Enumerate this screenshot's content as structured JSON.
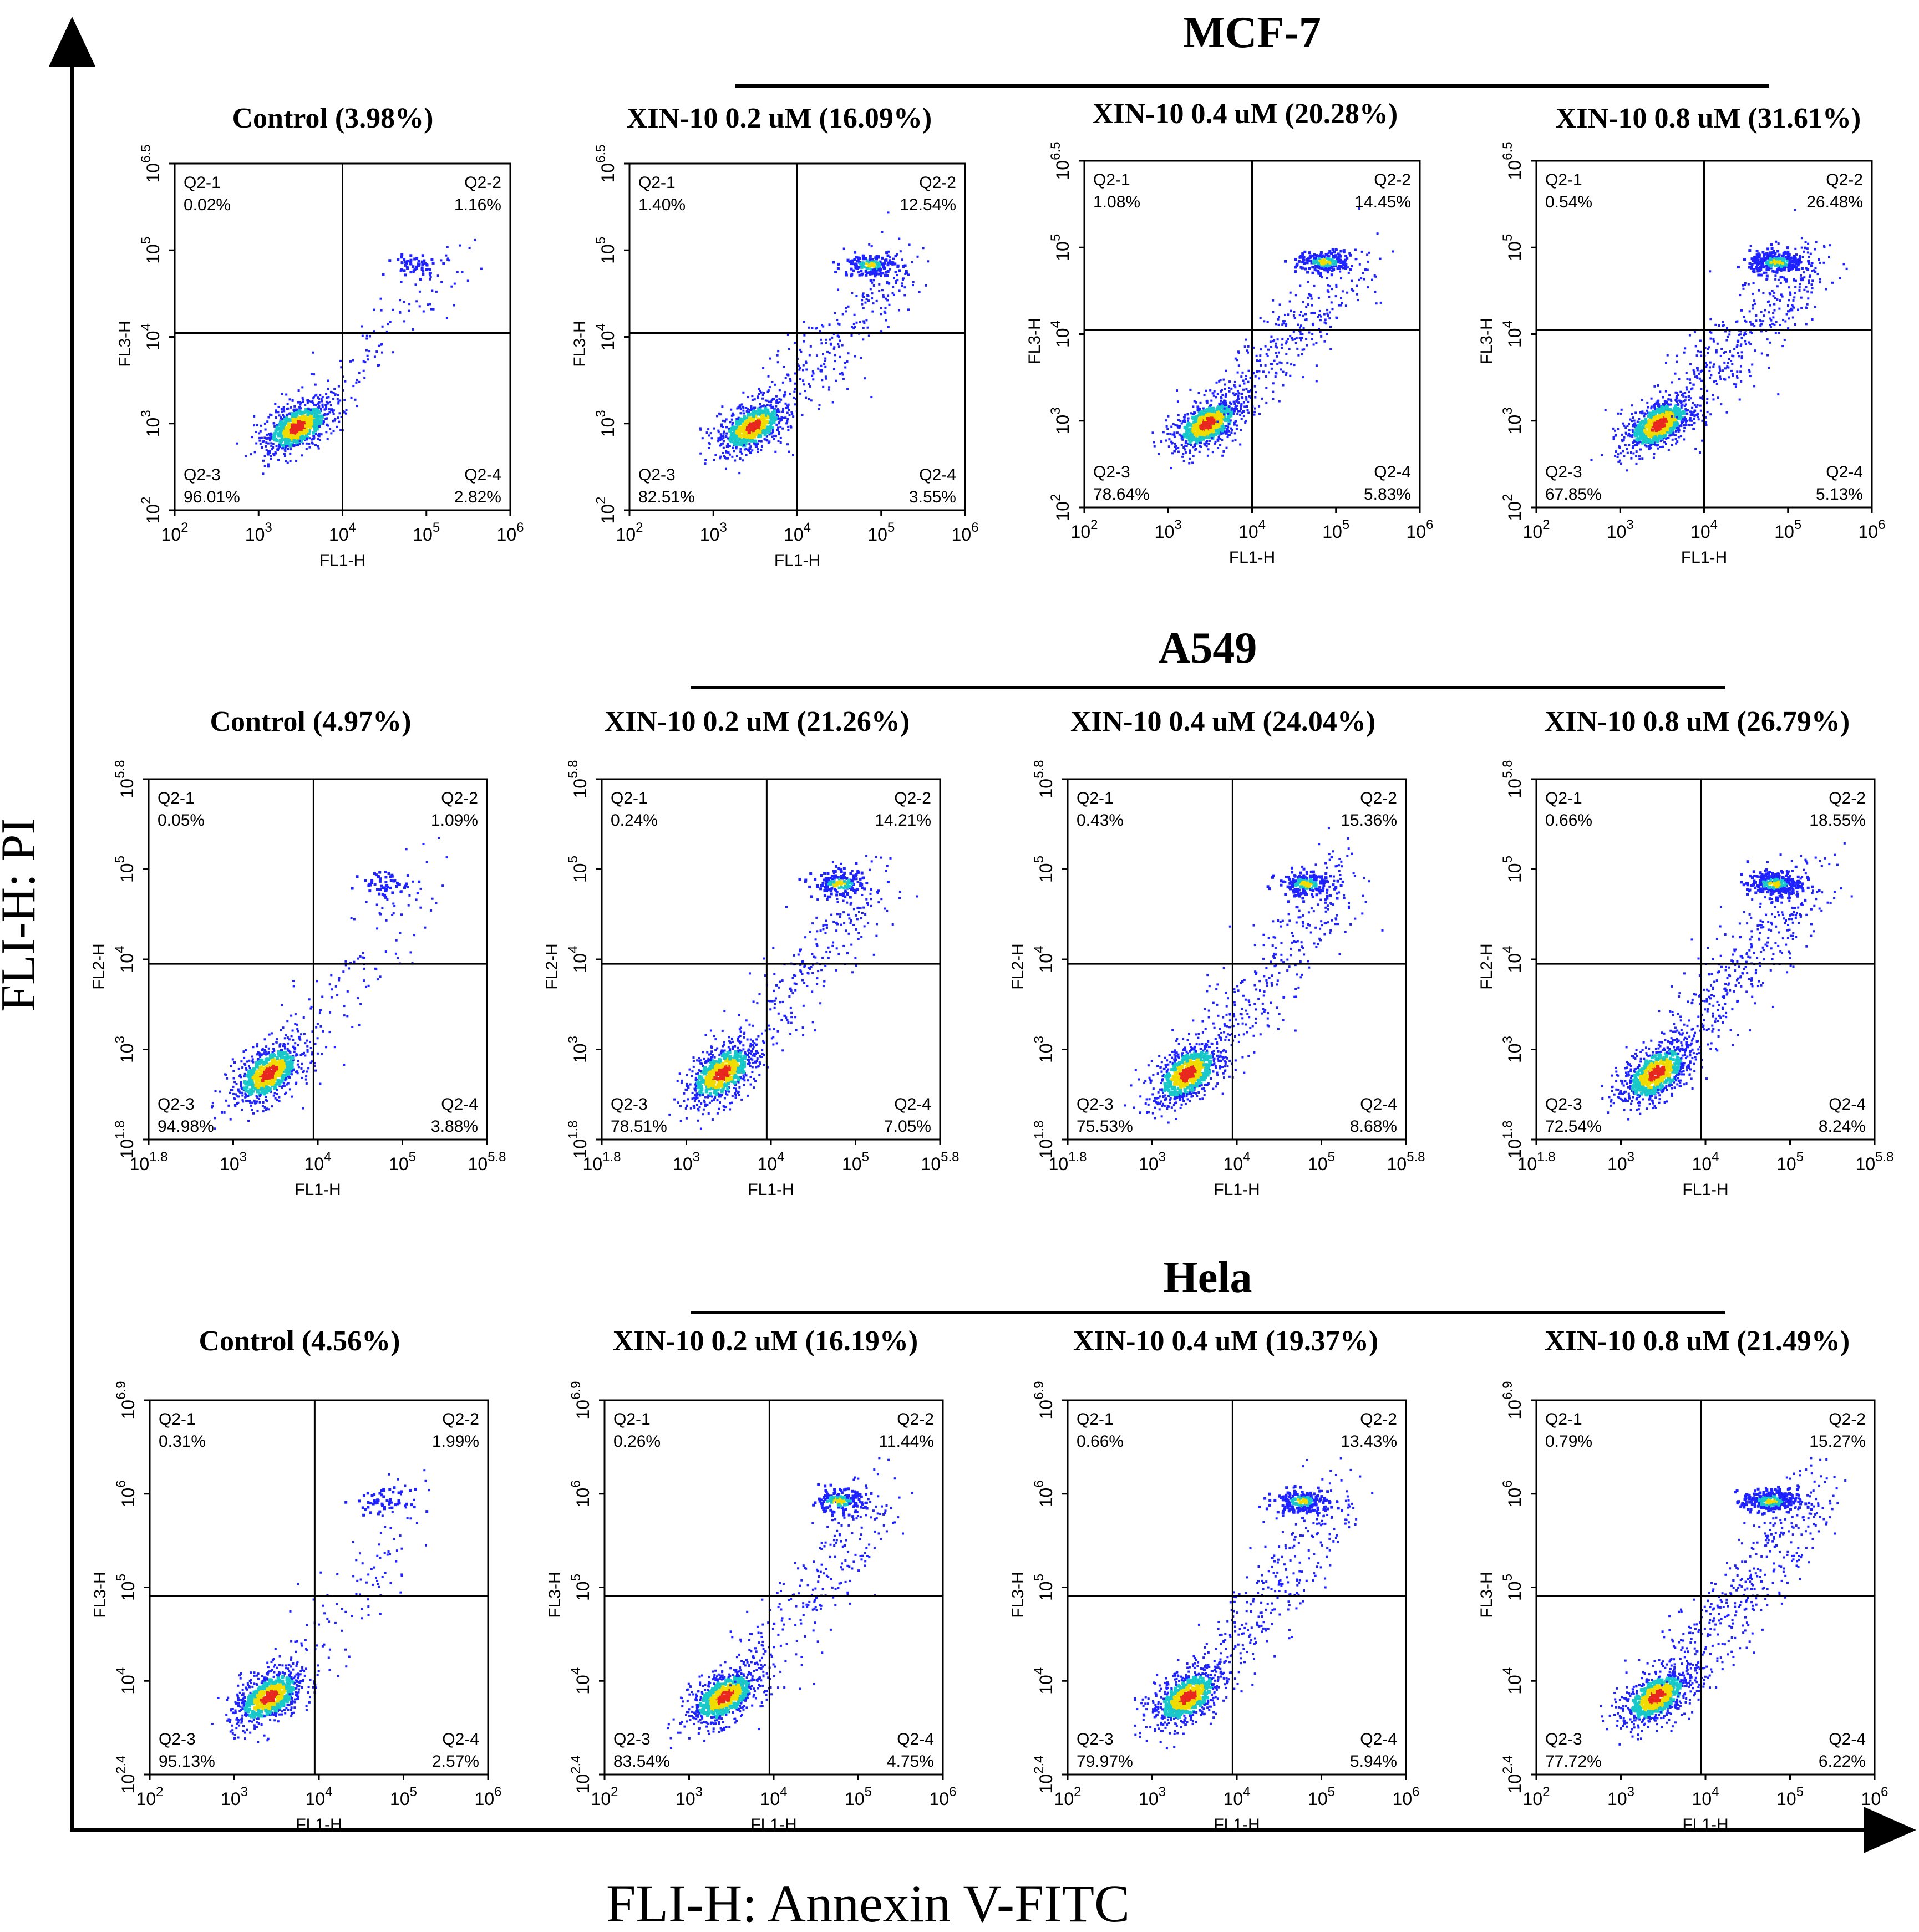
{
  "figure": {
    "y_axis_label": "FLI-H: PI",
    "x_axis_label": "FLI-H: Annexin V-FITC",
    "colors": {
      "frame": "#000000",
      "dot_low": "#1e22ff",
      "dot_mid": "#19c8c8",
      "dot_high": "#f0dc00",
      "dot_peak": "#e8281e"
    }
  },
  "chart_data": [
    {
      "group": "MCF-7",
      "plots": [
        {
          "title": "Control (3.98%)",
          "xlabel": "FL1-H",
          "ylabel": "FL3-H",
          "x_ticks": [
            {
              "b": "10",
              "e": "2"
            },
            {
              "b": "10",
              "e": "3"
            },
            {
              "b": "10",
              "e": "4"
            },
            {
              "b": "10",
              "e": "5"
            },
            {
              "b": "10",
              "e": "6"
            }
          ],
          "y_ticks": [
            {
              "b": "10",
              "e": "2"
            },
            {
              "b": "10",
              "e": "3"
            },
            {
              "b": "10",
              "e": "4"
            },
            {
              "b": "10",
              "e": "5"
            },
            {
              "b": "10",
              "e": "6.5"
            }
          ],
          "xlim_log": [
            2,
            6
          ],
          "ylim_log": [
            2,
            6.5
          ],
          "gate_log": [
            4,
            4.3
          ],
          "quadrants": {
            "q1": "Q2-1",
            "q1v": "0.02%",
            "q2": "Q2-2",
            "q2v": "1.16%",
            "q3": "Q2-3",
            "q3v": "96.01%",
            "q4": "Q2-4",
            "q4v": "2.82%"
          }
        },
        {
          "title": "XIN-10 0.2 uM (16.09%)",
          "xlabel": "FL1-H",
          "ylabel": "FL3-H",
          "x_ticks": [
            {
              "b": "10",
              "e": "2"
            },
            {
              "b": "10",
              "e": "3"
            },
            {
              "b": "10",
              "e": "4"
            },
            {
              "b": "10",
              "e": "5"
            },
            {
              "b": "10",
              "e": "6"
            }
          ],
          "y_ticks": [
            {
              "b": "10",
              "e": "2"
            },
            {
              "b": "10",
              "e": "3"
            },
            {
              "b": "10",
              "e": "4"
            },
            {
              "b": "10",
              "e": "5"
            },
            {
              "b": "10",
              "e": "6.5"
            }
          ],
          "xlim_log": [
            2,
            6
          ],
          "ylim_log": [
            2,
            6.5
          ],
          "gate_log": [
            4,
            4.3
          ],
          "quadrants": {
            "q1": "Q2-1",
            "q1v": "1.40%",
            "q2": "Q2-2",
            "q2v": "12.54%",
            "q3": "Q2-3",
            "q3v": "82.51%",
            "q4": "Q2-4",
            "q4v": "3.55%"
          }
        },
        {
          "title": "XIN-10 0.4 uM (20.28%)",
          "xlabel": "FL1-H",
          "ylabel": "FL3-H",
          "x_ticks": [
            {
              "b": "10",
              "e": "2"
            },
            {
              "b": "10",
              "e": "3"
            },
            {
              "b": "10",
              "e": "4"
            },
            {
              "b": "10",
              "e": "5"
            },
            {
              "b": "10",
              "e": "6"
            }
          ],
          "y_ticks": [
            {
              "b": "10",
              "e": "2"
            },
            {
              "b": "10",
              "e": "3"
            },
            {
              "b": "10",
              "e": "4"
            },
            {
              "b": "10",
              "e": "5"
            },
            {
              "b": "10",
              "e": "6.5"
            }
          ],
          "xlim_log": [
            2,
            6
          ],
          "ylim_log": [
            2,
            6.5
          ],
          "gate_log": [
            4,
            4.3
          ],
          "quadrants": {
            "q1": "Q2-1",
            "q1v": "1.08%",
            "q2": "Q2-2",
            "q2v": "14.45%",
            "q3": "Q2-3",
            "q3v": "78.64%",
            "q4": "Q2-4",
            "q4v": "5.83%"
          }
        },
        {
          "title": "XIN-10 0.8 uM (31.61%)",
          "xlabel": "FL1-H",
          "ylabel": "FL3-H",
          "x_ticks": [
            {
              "b": "10",
              "e": "2"
            },
            {
              "b": "10",
              "e": "3"
            },
            {
              "b": "10",
              "e": "4"
            },
            {
              "b": "10",
              "e": "5"
            },
            {
              "b": "10",
              "e": "6"
            }
          ],
          "y_ticks": [
            {
              "b": "10",
              "e": "2"
            },
            {
              "b": "10",
              "e": "3"
            },
            {
              "b": "10",
              "e": "4"
            },
            {
              "b": "10",
              "e": "5"
            },
            {
              "b": "10",
              "e": "6.5"
            }
          ],
          "xlim_log": [
            2,
            6
          ],
          "ylim_log": [
            2,
            6.5
          ],
          "gate_log": [
            4,
            4.3
          ],
          "quadrants": {
            "q1": "Q2-1",
            "q1v": "0.54%",
            "q2": "Q2-2",
            "q2v": "26.48%",
            "q3": "Q2-3",
            "q3v": "67.85%",
            "q4": "Q2-4",
            "q4v": "5.13%"
          }
        }
      ]
    },
    {
      "group": "A549",
      "plots": [
        {
          "title": "Control (4.97%)",
          "xlabel": "FL1-H",
          "ylabel": "FL2-H",
          "x_ticks": [
            {
              "b": "10",
              "e": "1.8"
            },
            {
              "b": "10",
              "e": "3"
            },
            {
              "b": "10",
              "e": "4"
            },
            {
              "b": "10",
              "e": "5"
            },
            {
              "b": "10",
              "e": "5.8"
            }
          ],
          "y_ticks": [
            {
              "b": "10",
              "e": "1.8"
            },
            {
              "b": "10",
              "e": "3"
            },
            {
              "b": "10",
              "e": "4"
            },
            {
              "b": "10",
              "e": "5"
            },
            {
              "b": "10",
              "e": "5.8"
            }
          ],
          "xlim_log": [
            1.8,
            5.8
          ],
          "ylim_log": [
            1.8,
            5.8
          ],
          "gate_log": [
            3.75,
            3.75
          ],
          "quadrants": {
            "q1": "Q2-1",
            "q1v": "0.05%",
            "q2": "Q2-2",
            "q2v": "1.09%",
            "q3": "Q2-3",
            "q3v": "94.98%",
            "q4": "Q2-4",
            "q4v": "3.88%"
          }
        },
        {
          "title": "XIN-10 0.2 uM (21.26%)",
          "xlabel": "FL1-H",
          "ylabel": "FL2-H",
          "x_ticks": [
            {
              "b": "10",
              "e": "1.8"
            },
            {
              "b": "10",
              "e": "3"
            },
            {
              "b": "10",
              "e": "4"
            },
            {
              "b": "10",
              "e": "5"
            },
            {
              "b": "10",
              "e": "5.8"
            }
          ],
          "y_ticks": [
            {
              "b": "10",
              "e": "1.8"
            },
            {
              "b": "10",
              "e": "3"
            },
            {
              "b": "10",
              "e": "4"
            },
            {
              "b": "10",
              "e": "5"
            },
            {
              "b": "10",
              "e": "5.8"
            }
          ],
          "xlim_log": [
            1.8,
            5.8
          ],
          "ylim_log": [
            1.8,
            5.8
          ],
          "gate_log": [
            3.75,
            3.75
          ],
          "quadrants": {
            "q1": "Q2-1",
            "q1v": "0.24%",
            "q2": "Q2-2",
            "q2v": "14.21%",
            "q3": "Q2-3",
            "q3v": "78.51%",
            "q4": "Q2-4",
            "q4v": "7.05%"
          }
        },
        {
          "title": "XIN-10 0.4 uM (24.04%)",
          "xlabel": "FL1-H",
          "ylabel": "FL2-H",
          "x_ticks": [
            {
              "b": "10",
              "e": "1.8"
            },
            {
              "b": "10",
              "e": "3"
            },
            {
              "b": "10",
              "e": "4"
            },
            {
              "b": "10",
              "e": "5"
            },
            {
              "b": "10",
              "e": "5.8"
            }
          ],
          "y_ticks": [
            {
              "b": "10",
              "e": "1.8"
            },
            {
              "b": "10",
              "e": "3"
            },
            {
              "b": "10",
              "e": "4"
            },
            {
              "b": "10",
              "e": "5"
            },
            {
              "b": "10",
              "e": "5.8"
            }
          ],
          "xlim_log": [
            1.8,
            5.8
          ],
          "ylim_log": [
            1.8,
            5.8
          ],
          "gate_log": [
            3.75,
            3.75
          ],
          "quadrants": {
            "q1": "Q2-1",
            "q1v": "0.43%",
            "q2": "Q2-2",
            "q2v": "15.36%",
            "q3": "Q2-3",
            "q3v": "75.53%",
            "q4": "Q2-4",
            "q4v": "8.68%"
          }
        },
        {
          "title": "XIN-10 0.8 uM (26.79%)",
          "xlabel": "FL1-H",
          "ylabel": "FL2-H",
          "x_ticks": [
            {
              "b": "10",
              "e": "1.8"
            },
            {
              "b": "10",
              "e": "3"
            },
            {
              "b": "10",
              "e": "4"
            },
            {
              "b": "10",
              "e": "5"
            },
            {
              "b": "10",
              "e": "5.8"
            }
          ],
          "y_ticks": [
            {
              "b": "10",
              "e": "1.8"
            },
            {
              "b": "10",
              "e": "3"
            },
            {
              "b": "10",
              "e": "4"
            },
            {
              "b": "10",
              "e": "5"
            },
            {
              "b": "10",
              "e": "5.8"
            }
          ],
          "xlim_log": [
            1.8,
            5.8
          ],
          "ylim_log": [
            1.8,
            5.8
          ],
          "gate_log": [
            3.75,
            3.75
          ],
          "quadrants": {
            "q1": "Q2-1",
            "q1v": "0.66%",
            "q2": "Q2-2",
            "q2v": "18.55%",
            "q3": "Q2-3",
            "q3v": "72.54%",
            "q4": "Q2-4",
            "q4v": "8.24%"
          }
        }
      ]
    },
    {
      "group": "Hela",
      "plots": [
        {
          "title": "Control (4.56%)",
          "xlabel": "FL1-H",
          "ylabel": "FL3-H",
          "x_ticks": [
            {
              "b": "10",
              "e": "2"
            },
            {
              "b": "10",
              "e": "3"
            },
            {
              "b": "10",
              "e": "4"
            },
            {
              "b": "10",
              "e": "5"
            },
            {
              "b": "10",
              "e": "6"
            }
          ],
          "y_ticks": [
            {
              "b": "10",
              "e": "2.4"
            },
            {
              "b": "10",
              "e": "4"
            },
            {
              "b": "10",
              "e": "5"
            },
            {
              "b": "10",
              "e": "6"
            },
            {
              "b": "10",
              "e": "6.9"
            }
          ],
          "xlim_log": [
            2,
            6
          ],
          "ylim_log": [
            2.4,
            6.9
          ],
          "gate_log": [
            3.95,
            4.55
          ],
          "quadrants": {
            "q1": "Q2-1",
            "q1v": "0.31%",
            "q2": "Q2-2",
            "q2v": "1.99%",
            "q3": "Q2-3",
            "q3v": "95.13%",
            "q4": "Q2-4",
            "q4v": "2.57%"
          }
        },
        {
          "title": "XIN-10 0.2 uM (16.19%)",
          "xlabel": "FL1-H",
          "ylabel": "FL3-H",
          "x_ticks": [
            {
              "b": "10",
              "e": "2"
            },
            {
              "b": "10",
              "e": "3"
            },
            {
              "b": "10",
              "e": "4"
            },
            {
              "b": "10",
              "e": "5"
            },
            {
              "b": "10",
              "e": "6"
            }
          ],
          "y_ticks": [
            {
              "b": "10",
              "e": "2.4"
            },
            {
              "b": "10",
              "e": "4"
            },
            {
              "b": "10",
              "e": "5"
            },
            {
              "b": "10",
              "e": "6"
            },
            {
              "b": "10",
              "e": "6.9"
            }
          ],
          "xlim_log": [
            2,
            6
          ],
          "ylim_log": [
            2.4,
            6.9
          ],
          "gate_log": [
            3.95,
            4.55
          ],
          "quadrants": {
            "q1": "Q2-1",
            "q1v": "0.26%",
            "q2": "Q2-2",
            "q2v": "11.44%",
            "q3": "Q2-3",
            "q3v": "83.54%",
            "q4": "Q2-4",
            "q4v": "4.75%"
          }
        },
        {
          "title": "XIN-10 0.4 uM (19.37%)",
          "xlabel": "FL1-H",
          "ylabel": "FL3-H",
          "x_ticks": [
            {
              "b": "10",
              "e": "2"
            },
            {
              "b": "10",
              "e": "3"
            },
            {
              "b": "10",
              "e": "4"
            },
            {
              "b": "10",
              "e": "5"
            },
            {
              "b": "10",
              "e": "6"
            }
          ],
          "y_ticks": [
            {
              "b": "10",
              "e": "2.4"
            },
            {
              "b": "10",
              "e": "4"
            },
            {
              "b": "10",
              "e": "5"
            },
            {
              "b": "10",
              "e": "6"
            },
            {
              "b": "10",
              "e": "6.9"
            }
          ],
          "xlim_log": [
            2,
            6
          ],
          "ylim_log": [
            2.4,
            6.9
          ],
          "gate_log": [
            3.95,
            4.55
          ],
          "quadrants": {
            "q1": "Q2-1",
            "q1v": "0.66%",
            "q2": "Q2-2",
            "q2v": "13.43%",
            "q3": "Q2-3",
            "q3v": "79.97%",
            "q4": "Q2-4",
            "q4v": "5.94%"
          }
        },
        {
          "title": "XIN-10 0.8 uM (21.49%)",
          "xlabel": "FL1-H",
          "ylabel": "FL3-H",
          "x_ticks": [
            {
              "b": "10",
              "e": "2"
            },
            {
              "b": "10",
              "e": "3"
            },
            {
              "b": "10",
              "e": "4"
            },
            {
              "b": "10",
              "e": "5"
            },
            {
              "b": "10",
              "e": "6"
            }
          ],
          "y_ticks": [
            {
              "b": "10",
              "e": "2.4"
            },
            {
              "b": "10",
              "e": "4"
            },
            {
              "b": "10",
              "e": "5"
            },
            {
              "b": "10",
              "e": "6"
            },
            {
              "b": "10",
              "e": "6.9"
            }
          ],
          "xlim_log": [
            2,
            6
          ],
          "ylim_log": [
            2.4,
            6.9
          ],
          "gate_log": [
            3.95,
            4.55
          ],
          "quadrants": {
            "q1": "Q2-1",
            "q1v": "0.79%",
            "q2": "Q2-2",
            "q2v": "15.27%",
            "q3": "Q2-3",
            "q3v": "77.72%",
            "q4": "Q2-4",
            "q4v": "6.22%"
          }
        }
      ]
    }
  ]
}
